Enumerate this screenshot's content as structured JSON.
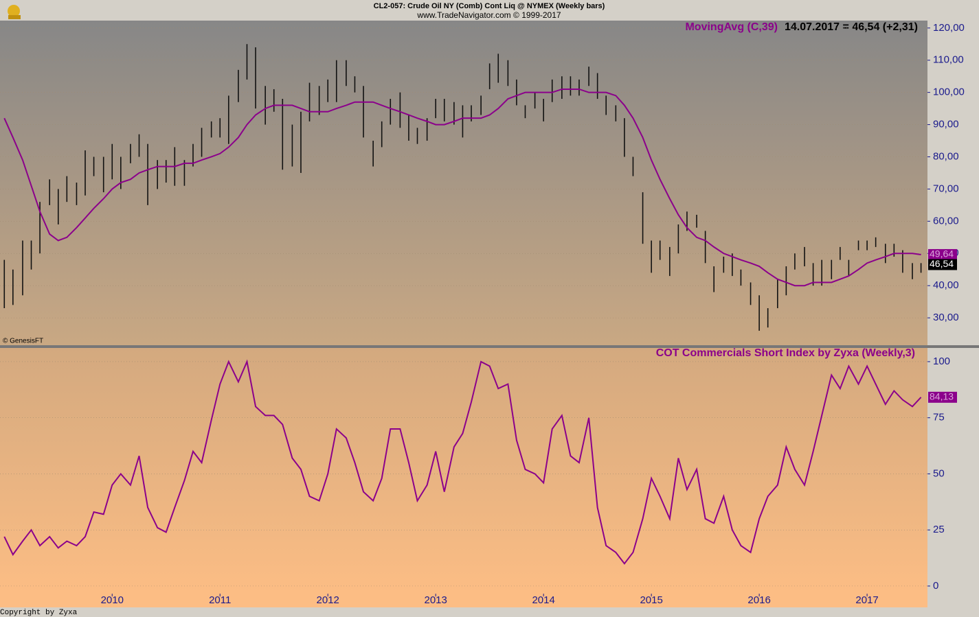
{
  "chart_data": [
    {
      "type": "hilo",
      "title": "CL2-057:  Crude Oil NY (Comb) Cont Liq @ NYMEX  (Weekly bars)",
      "subtitle": "www.TradeNavigator.com © 1999-2017",
      "annotation": "14.07.2017 = 46,54 (+2,31)",
      "source": "© GenesisFT",
      "x": [
        2009,
        2009.08,
        2009.17,
        2009.25,
        2009.33,
        2009.42,
        2009.5,
        2009.58,
        2009.67,
        2009.75,
        2009.83,
        2009.92,
        2010,
        2010.08,
        2010.17,
        2010.25,
        2010.33,
        2010.42,
        2010.5,
        2010.58,
        2010.67,
        2010.75,
        2010.83,
        2010.92,
        2011,
        2011.08,
        2011.17,
        2011.25,
        2011.33,
        2011.42,
        2011.5,
        2011.58,
        2011.67,
        2011.75,
        2011.83,
        2011.92,
        2012,
        2012.08,
        2012.17,
        2012.25,
        2012.33,
        2012.42,
        2012.5,
        2012.58,
        2012.67,
        2012.75,
        2012.83,
        2012.92,
        2013,
        2013.08,
        2013.17,
        2013.25,
        2013.33,
        2013.42,
        2013.5,
        2013.58,
        2013.67,
        2013.75,
        2013.83,
        2013.92,
        2014,
        2014.08,
        2014.17,
        2014.25,
        2014.33,
        2014.42,
        2014.5,
        2014.58,
        2014.67,
        2014.75,
        2014.83,
        2014.92,
        2015,
        2015.08,
        2015.17,
        2015.25,
        2015.33,
        2015.42,
        2015.5,
        2015.58,
        2015.67,
        2015.75,
        2015.83,
        2015.92,
        2016,
        2016.08,
        2016.17,
        2016.25,
        2016.33,
        2016.42,
        2016.5,
        2016.58,
        2016.67,
        2016.75,
        2016.83,
        2016.92,
        2017,
        2017.08,
        2017.17,
        2017.25,
        2017.33,
        2017.42,
        2017.5
      ],
      "high": [
        48,
        45,
        54,
        54,
        66,
        73,
        70,
        74,
        72,
        82,
        80,
        80,
        84,
        80,
        84,
        87,
        84,
        79,
        79,
        83,
        79,
        84,
        89,
        91,
        92,
        99,
        107,
        115,
        114,
        102,
        101,
        98,
        90,
        94,
        103,
        102,
        104,
        110,
        110,
        105,
        102,
        85,
        91,
        98,
        100,
        93,
        89,
        92,
        98,
        98,
        97,
        96,
        96,
        99,
        109,
        112,
        110,
        104,
        96,
        100,
        98,
        104,
        105,
        105,
        104,
        108,
        106,
        99,
        96,
        92,
        80,
        69,
        54,
        54,
        52,
        59,
        63,
        62,
        57,
        46,
        49,
        50,
        45,
        41,
        37,
        33,
        42,
        46,
        50,
        52,
        47,
        48,
        48,
        52,
        48,
        54,
        54,
        55,
        53,
        53,
        51,
        47,
        47
      ],
      "low": [
        33,
        34,
        37,
        45,
        50,
        65,
        59,
        66,
        65,
        68,
        74,
        69,
        73,
        70,
        78,
        80,
        65,
        70,
        72,
        71,
        71,
        77,
        80,
        86,
        86,
        84,
        97,
        104,
        95,
        90,
        94,
        76,
        77,
        75,
        91,
        93,
        97,
        97,
        102,
        100,
        86,
        77,
        83,
        90,
        89,
        85,
        84,
        85,
        92,
        91,
        90,
        86,
        91,
        93,
        101,
        103,
        102,
        96,
        92,
        95,
        91,
        97,
        98,
        99,
        99,
        102,
        98,
        93,
        91,
        80,
        74,
        53,
        44,
        48,
        43,
        50,
        57,
        58,
        47,
        38,
        44,
        43,
        40,
        34,
        26,
        27,
        33,
        37,
        45,
        46,
        40,
        40,
        42,
        48,
        43,
        51,
        51,
        52,
        47,
        49,
        44,
        42,
        44
      ],
      "bar_color": "#111111",
      "last_price": {
        "value": 46.54,
        "label": "46,54"
      },
      "series": [
        {
          "name": "MovingAvg (C,39)",
          "type": "line",
          "color": "#8b008b",
          "last_label": "49,64",
          "values": [
            92,
            86,
            79,
            71,
            63,
            56,
            54,
            55,
            58,
            61,
            64,
            67,
            70,
            72,
            73,
            75,
            76,
            77,
            77,
            77,
            78,
            78,
            79,
            80,
            81,
            83,
            86,
            90,
            93,
            95,
            96,
            96,
            96,
            95,
            94,
            94,
            94,
            95,
            96,
            97,
            97,
            97,
            96,
            95,
            94,
            93,
            92,
            91,
            90,
            90,
            91,
            92,
            92,
            92,
            93,
            95,
            98,
            99,
            100,
            100,
            100,
            100,
            101,
            101,
            101,
            100,
            100,
            100,
            99,
            96,
            92,
            86,
            79,
            73,
            67,
            62,
            58,
            55,
            54,
            52,
            50,
            49,
            48,
            47,
            46,
            44,
            42,
            41,
            40,
            40,
            41,
            41,
            41,
            42,
            43,
            45,
            47,
            48,
            49,
            50,
            50,
            50,
            49.64
          ]
        }
      ],
      "xlim": [
        2008.96,
        2017.56
      ],
      "ylim": [
        21.5,
        122.3
      ],
      "yticks": [
        {
          "value": 30,
          "label": "30,00"
        },
        {
          "value": 40,
          "label": "40,00"
        },
        {
          "value": 50,
          "label": "50,00"
        },
        {
          "value": 60,
          "label": "60,00"
        },
        {
          "value": 70,
          "label": "70,00"
        },
        {
          "value": 80,
          "label": "80,00"
        },
        {
          "value": 90,
          "label": "90,00"
        },
        {
          "value": 100,
          "label": "100,00"
        },
        {
          "value": 110,
          "label": "110,00"
        },
        {
          "value": 120,
          "label": "120,00"
        }
      ],
      "grid": true
    },
    {
      "type": "line",
      "title": "COT Commercials Short Index by Zyxa (Weekly,3)",
      "color": "#8b008b",
      "x": [
        2009,
        2009.08,
        2009.17,
        2009.25,
        2009.33,
        2009.42,
        2009.5,
        2009.58,
        2009.67,
        2009.75,
        2009.83,
        2009.92,
        2010,
        2010.08,
        2010.17,
        2010.25,
        2010.33,
        2010.42,
        2010.5,
        2010.58,
        2010.67,
        2010.75,
        2010.83,
        2010.92,
        2011,
        2011.08,
        2011.17,
        2011.25,
        2011.33,
        2011.42,
        2011.5,
        2011.58,
        2011.67,
        2011.75,
        2011.83,
        2011.92,
        2012,
        2012.08,
        2012.17,
        2012.25,
        2012.33,
        2012.42,
        2012.5,
        2012.58,
        2012.67,
        2012.75,
        2012.83,
        2012.92,
        2013,
        2013.08,
        2013.17,
        2013.25,
        2013.33,
        2013.42,
        2013.5,
        2013.58,
        2013.67,
        2013.75,
        2013.83,
        2013.92,
        2014,
        2014.08,
        2014.17,
        2014.25,
        2014.33,
        2014.42,
        2014.5,
        2014.58,
        2014.67,
        2014.75,
        2014.83,
        2014.92,
        2015,
        2015.08,
        2015.17,
        2015.25,
        2015.33,
        2015.42,
        2015.5,
        2015.58,
        2015.67,
        2015.75,
        2015.83,
        2015.92,
        2016,
        2016.08,
        2016.17,
        2016.25,
        2016.33,
        2016.42,
        2016.5,
        2016.58,
        2016.67,
        2016.75,
        2016.83,
        2016.92,
        2017,
        2017.08,
        2017.17,
        2017.25,
        2017.33,
        2017.42,
        2017.5
      ],
      "values": [
        22,
        14,
        20,
        25,
        18,
        22,
        17,
        20,
        18,
        22,
        33,
        32,
        45,
        50,
        45,
        58,
        35,
        26,
        24,
        35,
        47,
        60,
        55,
        74,
        90,
        100,
        91,
        100,
        80,
        76,
        76,
        72,
        57,
        52,
        40,
        38,
        50,
        70,
        66,
        55,
        42,
        38,
        48,
        70,
        70,
        55,
        38,
        45,
        60,
        42,
        62,
        68,
        82,
        100,
        98,
        88,
        90,
        65,
        52,
        50,
        46,
        70,
        76,
        58,
        55,
        75,
        35,
        18,
        15,
        10,
        15,
        30,
        48,
        40,
        30,
        57,
        43,
        52,
        30,
        28,
        40,
        25,
        18,
        15,
        30,
        40,
        45,
        62,
        52,
        45,
        60,
        76,
        94,
        88,
        98,
        90,
        98,
        90,
        81,
        87,
        83,
        80,
        84.13
      ],
      "last_label": "84,13",
      "xlim": [
        2008.96,
        2017.56
      ],
      "xticks": [
        2010,
        2011,
        2012,
        2013,
        2014,
        2015,
        2016,
        2017
      ],
      "ylim": [
        -3.4,
        106.1
      ],
      "yticks": [
        0,
        25,
        50,
        75,
        100
      ],
      "grid": true
    }
  ],
  "footer": "Copyright by Zyxa"
}
